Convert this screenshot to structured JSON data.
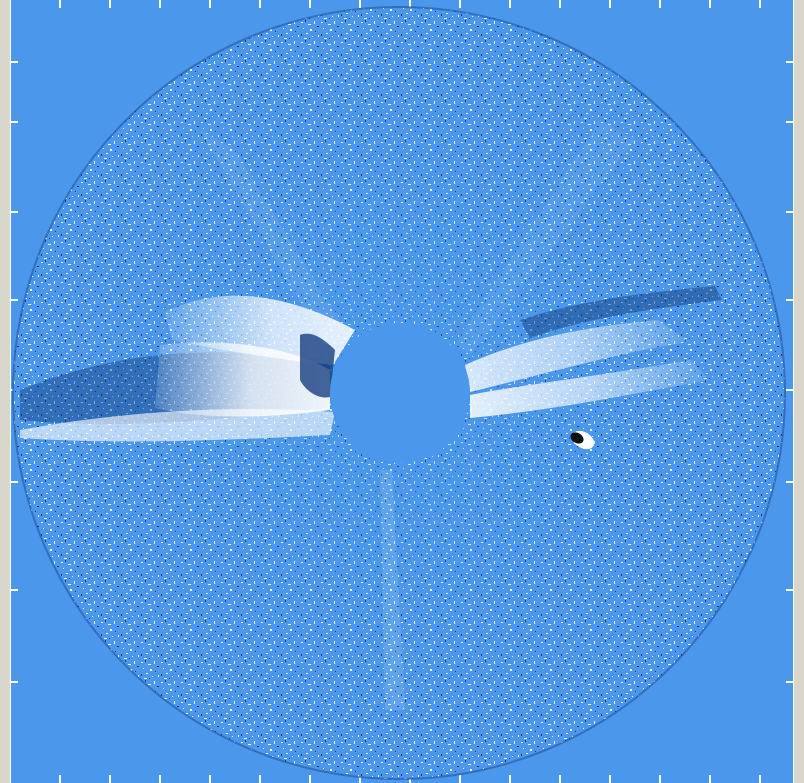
{
  "image": {
    "subject": "coronagraph-difference-image",
    "colors": {
      "background": "#4a97eb",
      "disk_mask": "#4a97eb",
      "bright_features": "#ffffff",
      "dark_features": "#173f7f",
      "page_edge": "#e8e6dc"
    }
  }
}
